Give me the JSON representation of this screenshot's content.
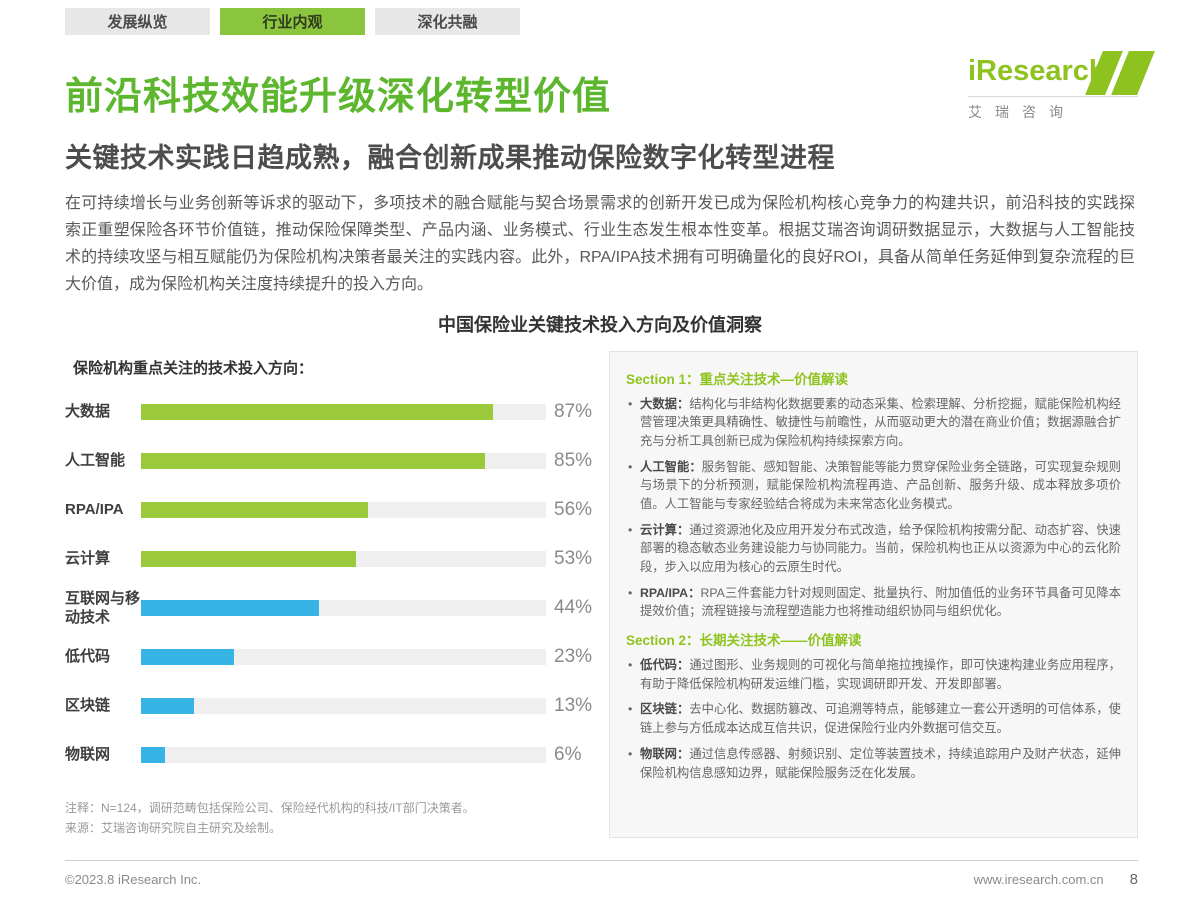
{
  "tabs": [
    {
      "label": "发展纵览",
      "active": false
    },
    {
      "label": "行业内观",
      "active": true
    },
    {
      "label": "深化共融",
      "active": false
    }
  ],
  "header": {
    "title": "前沿科技效能升级深化转型价值",
    "logo_text": "iResearch",
    "logo_sub": "艾瑞咨询",
    "subtitle": "关键技术实践日趋成熟，融合创新成果推动保险数字化转型进程"
  },
  "intro": "在可持续增长与业务创新等诉求的驱动下，多项技术的融合赋能与契合场景需求的创新开发已成为保险机构核心竞争力的构建共识，前沿科技的实践探索正重塑保险各环节价值链，推动保险保障类型、产品内涵、业务模式、行业生态发生根本性变革。根据艾瑞咨询调研数据显示，大数据与人工智能技术的持续攻坚与相互赋能仍为保险机构决策者最关注的实践内容。此外，RPA/IPA技术拥有可明确量化的良好ROI，具备从简单任务延伸到复杂流程的巨大价值，成为保险机构关注度持续提升的投入方向。",
  "chart_section_title": "中国保险业关键技术投入方向及价值洞察",
  "chart_data": {
    "type": "bar",
    "orientation": "horizontal",
    "title": "保险机构重点关注的技术投入方向：",
    "categories": [
      "大数据",
      "人工智能",
      "RPA/IPA",
      "云计算",
      "互联网与移动技术",
      "低代码",
      "区块链",
      "物联网"
    ],
    "values": [
      87,
      85,
      56,
      53,
      44,
      23,
      13,
      6
    ],
    "value_labels": [
      "87%",
      "85%",
      "56%",
      "53%",
      "44%",
      "23%",
      "13%",
      "6%"
    ],
    "unit": "%",
    "xlim": [
      0,
      100
    ],
    "colors": [
      "#9aca3b",
      "#9aca3b",
      "#9aca3b",
      "#9aca3b",
      "#35b4e5",
      "#35b4e5",
      "#35b4e5",
      "#35b4e5"
    ],
    "track_color": "#efefef",
    "legend": null,
    "grid": false
  },
  "notes": [
    "注释：N=124，调研范畴包括保险公司、保险经代机构的科技/IT部门决策者。",
    "来源：艾瑞咨询研究院自主研究及绘制。"
  ],
  "insights": {
    "sections": [
      {
        "heading": "Section 1：重点关注技术—价值解读",
        "bullets": [
          {
            "term": "大数据：",
            "text": "结构化与非结构化数据要素的动态采集、检索理解、分析挖掘，赋能保险机构经营管理决策更具精确性、敏捷性与前瞻性，从而驱动更大的潜在商业价值；数据源融合扩充与分析工具创新已成为保险机构持续探索方向。"
          },
          {
            "term": "人工智能：",
            "text": "服务智能、感知智能、决策智能等能力贯穿保险业务全链路，可实现复杂规则与场景下的分析预测，赋能保险机构流程再造、产品创新、服务升级、成本释放多项价值。人工智能与专家经验结合将成为未来常态化业务模式。"
          },
          {
            "term": "云计算：",
            "text": "通过资源池化及应用开发分布式改造，给予保险机构按需分配、动态扩容、快速部署的稳态敏态业务建设能力与协同能力。当前，保险机构也正从以资源为中心的云化阶段，步入以应用为核心的云原生时代。"
          },
          {
            "term": "RPA/IPA：",
            "text": "RPA三件套能力针对规则固定、批量执行、附加值低的业务环节具备可见降本提效价值；流程链接与流程塑造能力也将推动组织协同与组织优化。"
          }
        ]
      },
      {
        "heading": "Section 2：长期关注技术——价值解读",
        "bullets": [
          {
            "term": "低代码：",
            "text": "通过图形、业务规则的可视化与简单拖拉拽操作，即可快速构建业务应用程序，有助于降低保险机构研发运维门槛，实现调研即开发、开发即部署。"
          },
          {
            "term": "区块链：",
            "text": "去中心化、数据防篡改、可追溯等特点，能够建立一套公开透明的可信体系，使链上参与方低成本达成互信共识，促进保险行业内外数据可信交互。"
          },
          {
            "term": "物联网：",
            "text": "通过信息传感器、射频识别、定位等装置技术，持续追踪用户及财产状态，延伸保险机构信息感知边界，赋能保险服务泛在化发展。"
          }
        ]
      }
    ]
  },
  "footer": {
    "left": "©2023.8 iResearch Inc.",
    "right": "www.iresearch.com.cn",
    "page": "8"
  },
  "theme": {
    "title_green": "#5cb72e",
    "tab_green": "#8bc53e",
    "section_green": "#8fc31f",
    "bar_green": "#9aca3b",
    "bar_blue": "#35b4e5"
  }
}
